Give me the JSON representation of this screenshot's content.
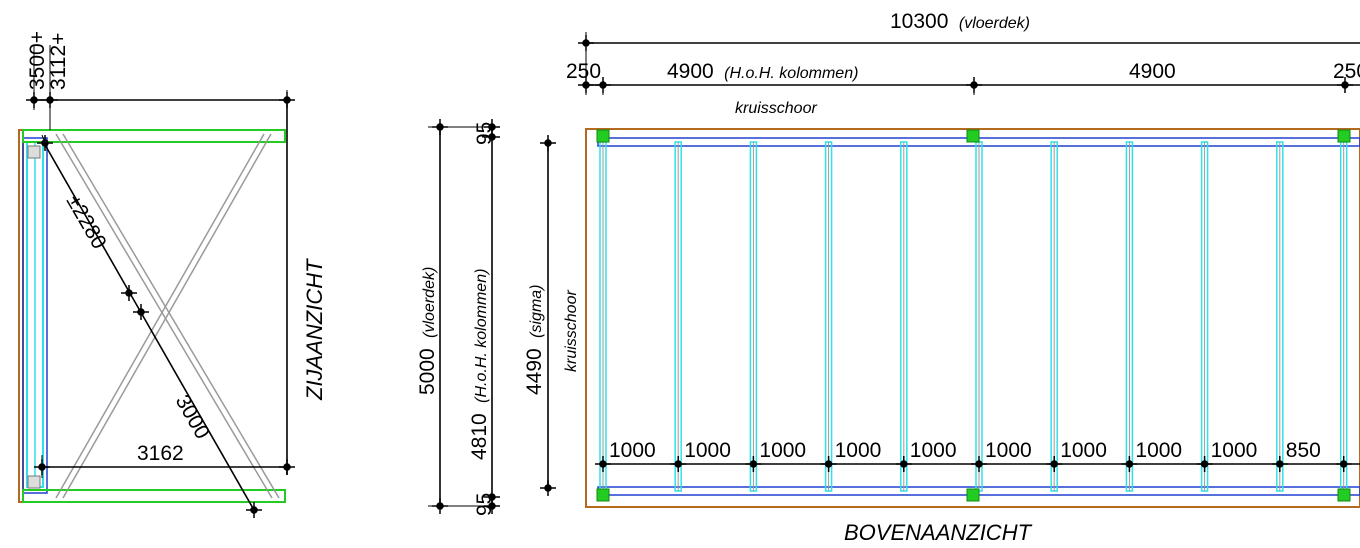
{
  "side_view": {
    "top_dims": [
      "3500+",
      "3112+"
    ],
    "title": "ZIJAANZICHT",
    "diag_upper": "±2280",
    "diag_lower": "3000",
    "width_dim": "3162"
  },
  "top_view": {
    "total_width": "10300",
    "total_width_note": "(vloerdek)",
    "edge_left": "250",
    "edge_right": "250",
    "span1": "4900",
    "span1_note": "(H.o.H. kolommen)",
    "span2": "4900",
    "kruisschoor_top": "kruisschoor",
    "kruisschoor_side": "kruisschoor",
    "depth_total": "5000",
    "depth_total_note": "(vloerdek)",
    "depth_columns": "4810",
    "depth_columns_note": "(H.o.H. kolommen)",
    "depth_sigma": "4490",
    "depth_sigma_note": "(sigma)",
    "offset_top": "95",
    "offset_bottom": "95",
    "spacings": [
      "1000",
      "1000",
      "1000",
      "1000",
      "1000",
      "1000",
      "1000",
      "1000",
      "1000",
      "850"
    ],
    "title": "BOVENAANZICHT"
  },
  "colors": {
    "deck": "#b36a1e",
    "beam": "#2040d0",
    "joist": "#30e0e8",
    "column": "#22cc22",
    "brace": "#9a9a9a",
    "dimension": "#000000"
  }
}
